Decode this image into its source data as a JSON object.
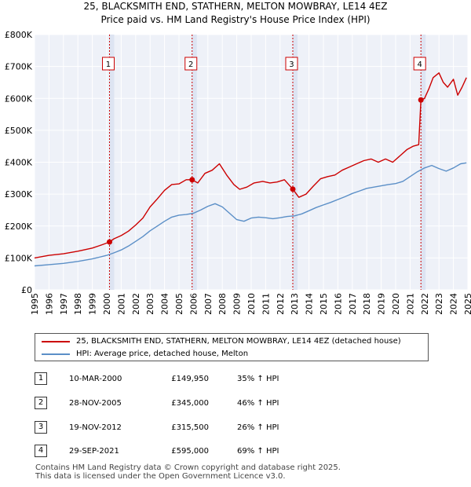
{
  "chart_data": {
    "type": "line",
    "title": "25, BLACKSMITH END, STATHERN, MELTON MOWBRAY, LE14 4EZ",
    "subtitle": "Price paid vs. HM Land Registry's House Price Index (HPI)",
    "xlabel": "",
    "ylabel": "",
    "xlim": [
      1995,
      2025
    ],
    "ylim": [
      0,
      800000
    ],
    "y_ticks": [
      0,
      100000,
      200000,
      300000,
      400000,
      500000,
      600000,
      700000,
      800000
    ],
    "y_tick_labels": [
      "£0",
      "£100K",
      "£200K",
      "£300K",
      "£400K",
      "£500K",
      "£600K",
      "£700K",
      "£800K"
    ],
    "x_ticks": [
      "1995",
      "1996",
      "1997",
      "1998",
      "1999",
      "2000",
      "2001",
      "2002",
      "2003",
      "2004",
      "2005",
      "2006",
      "2007",
      "2008",
      "2009",
      "2010",
      "2011",
      "2012",
      "2013",
      "2014",
      "2015",
      "2016",
      "2017",
      "2018",
      "2019",
      "2020",
      "2021",
      "2022",
      "2023",
      "2024",
      "2025"
    ],
    "grid": true,
    "series": [
      {
        "name": "25, BLACKSMITH END, STATHERN, MELTON MOWBRAY, LE14 4EZ (detached house)",
        "color": "#cc0000",
        "x": [
          1995.0,
          1996.0,
          1997.0,
          1998.0,
          1999.0,
          1999.6,
          2000.19,
          2000.5,
          2001.0,
          2001.5,
          2002.0,
          2002.5,
          2003.0,
          2003.5,
          2004.0,
          2004.5,
          2005.0,
          2005.5,
          2005.9,
          2006.3,
          2006.8,
          2007.3,
          2007.8,
          2008.3,
          2008.8,
          2009.2,
          2009.7,
          2010.2,
          2010.8,
          2011.3,
          2011.8,
          2012.3,
          2012.88,
          2013.3,
          2013.8,
          2014.3,
          2014.8,
          2015.3,
          2015.8,
          2016.3,
          2016.8,
          2017.3,
          2017.8,
          2018.3,
          2018.8,
          2019.3,
          2019.8,
          2020.3,
          2020.8,
          2021.2,
          2021.6,
          2021.75,
          2022.0,
          2022.3,
          2022.6,
          2023.0,
          2023.3,
          2023.6,
          2024.0,
          2024.3,
          2024.6,
          2024.9
        ],
        "values": [
          100000,
          108000,
          113000,
          121000,
          131000,
          140000,
          149950,
          160000,
          170000,
          184000,
          203000,
          225000,
          260000,
          285000,
          312000,
          330000,
          332000,
          345000,
          345000,
          335000,
          365000,
          375000,
          395000,
          360000,
          330000,
          315000,
          322000,
          335000,
          340000,
          335000,
          338000,
          345000,
          315500,
          290000,
          300000,
          325000,
          348000,
          355000,
          360000,
          375000,
          385000,
          395000,
          405000,
          410000,
          400000,
          410000,
          400000,
          420000,
          440000,
          450000,
          455000,
          595000,
          600000,
          630000,
          665000,
          680000,
          650000,
          635000,
          660000,
          610000,
          635000,
          665000
        ]
      },
      {
        "name": "HPI: Average price, detached house, Melton",
        "color": "#5b8fc7",
        "x": [
          1995.0,
          1996.0,
          1997.0,
          1998.0,
          1999.0,
          2000.0,
          2000.5,
          2001.0,
          2001.5,
          2002.0,
          2002.5,
          2003.0,
          2003.5,
          2004.0,
          2004.5,
          2005.0,
          2005.5,
          2006.0,
          2006.5,
          2007.0,
          2007.5,
          2008.0,
          2008.5,
          2009.0,
          2009.5,
          2010.0,
          2010.5,
          2011.0,
          2011.5,
          2012.0,
          2012.5,
          2013.0,
          2013.5,
          2014.0,
          2014.5,
          2015.0,
          2015.5,
          2016.0,
          2016.5,
          2017.0,
          2017.5,
          2018.0,
          2018.5,
          2019.0,
          2019.5,
          2020.0,
          2020.5,
          2021.0,
          2021.5,
          2022.0,
          2022.5,
          2023.0,
          2023.5,
          2024.0,
          2024.5,
          2024.9
        ],
        "values": [
          75000,
          79000,
          83000,
          89000,
          97000,
          108000,
          116000,
          125000,
          137000,
          152000,
          167000,
          185000,
          200000,
          215000,
          228000,
          234000,
          236000,
          240000,
          250000,
          262000,
          270000,
          260000,
          240000,
          220000,
          215000,
          225000,
          228000,
          226000,
          223000,
          226000,
          230000,
          232000,
          238000,
          248000,
          258000,
          266000,
          274000,
          283000,
          292000,
          302000,
          310000,
          318000,
          322000,
          326000,
          330000,
          333000,
          340000,
          355000,
          370000,
          382000,
          390000,
          380000,
          372000,
          382000,
          395000,
          398000
        ]
      }
    ],
    "sales": [
      {
        "label": "1",
        "x": 2000.19,
        "value": 149950
      },
      {
        "label": "2",
        "x": 2005.91,
        "value": 345000
      },
      {
        "label": "3",
        "x": 2012.88,
        "value": 315500
      },
      {
        "label": "4",
        "x": 2021.75,
        "value": 595000
      }
    ]
  },
  "legend": {
    "red_label": "25, BLACKSMITH END, STATHERN, MELTON MOWBRAY, LE14 4EZ (detached house)",
    "blue_label": "HPI: Average price, detached house, Melton"
  },
  "table": [
    {
      "num": "1",
      "date": "10-MAR-2000",
      "price": "£149,950",
      "hpi": "35% ↑ HPI"
    },
    {
      "num": "2",
      "date": "28-NOV-2005",
      "price": "£345,000",
      "hpi": "46% ↑ HPI"
    },
    {
      "num": "3",
      "date": "19-NOV-2012",
      "price": "£315,500",
      "hpi": "26% ↑ HPI"
    },
    {
      "num": "4",
      "date": "29-SEP-2021",
      "price": "£595,000",
      "hpi": "69% ↑ HPI"
    }
  ],
  "footer": {
    "line1": "Contains HM Land Registry data © Crown copyright and database right 2025.",
    "line2": "This data is licensed under the Open Government Licence v3.0."
  }
}
